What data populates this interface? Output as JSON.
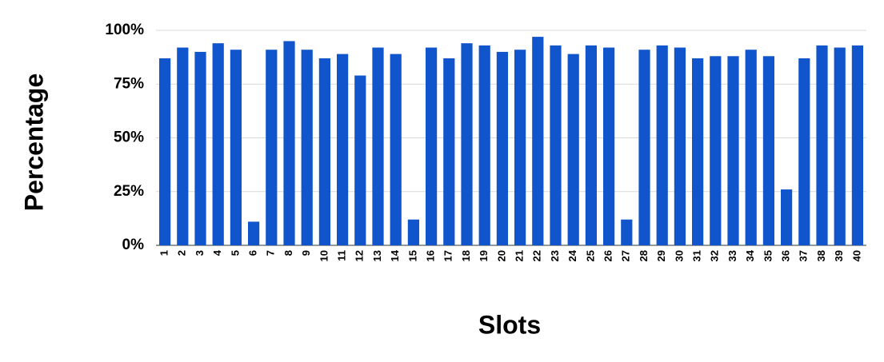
{
  "chart_data": {
    "type": "bar",
    "x_label": "Slots",
    "y_label": "Percentage",
    "categories": [
      "1",
      "2",
      "3",
      "4",
      "5",
      "6",
      "7",
      "8",
      "9",
      "10",
      "11",
      "12",
      "13",
      "14",
      "15",
      "16",
      "17",
      "18",
      "19",
      "20",
      "21",
      "22",
      "23",
      "24",
      "25",
      "26",
      "27",
      "28",
      "29",
      "30",
      "31",
      "32",
      "33",
      "34",
      "35",
      "36",
      "37",
      "38",
      "39",
      "40"
    ],
    "values": [
      87,
      92,
      90,
      94,
      91,
      11,
      91,
      95,
      91,
      87,
      89,
      79,
      92,
      89,
      12,
      92,
      87,
      94,
      93,
      90,
      91,
      97,
      93,
      89,
      93,
      92,
      12,
      91,
      93,
      92,
      87,
      88,
      88,
      91,
      88,
      26,
      87,
      93,
      92,
      93
    ],
    "color": "#1155cc",
    "ylim": [
      0,
      100
    ],
    "yticks": [
      {
        "value": 0,
        "label": "0%"
      },
      {
        "value": 25,
        "label": "25%"
      },
      {
        "value": 50,
        "label": "50%"
      },
      {
        "value": 75,
        "label": "75%"
      },
      {
        "value": 100,
        "label": "100%"
      }
    ],
    "grid": true
  }
}
